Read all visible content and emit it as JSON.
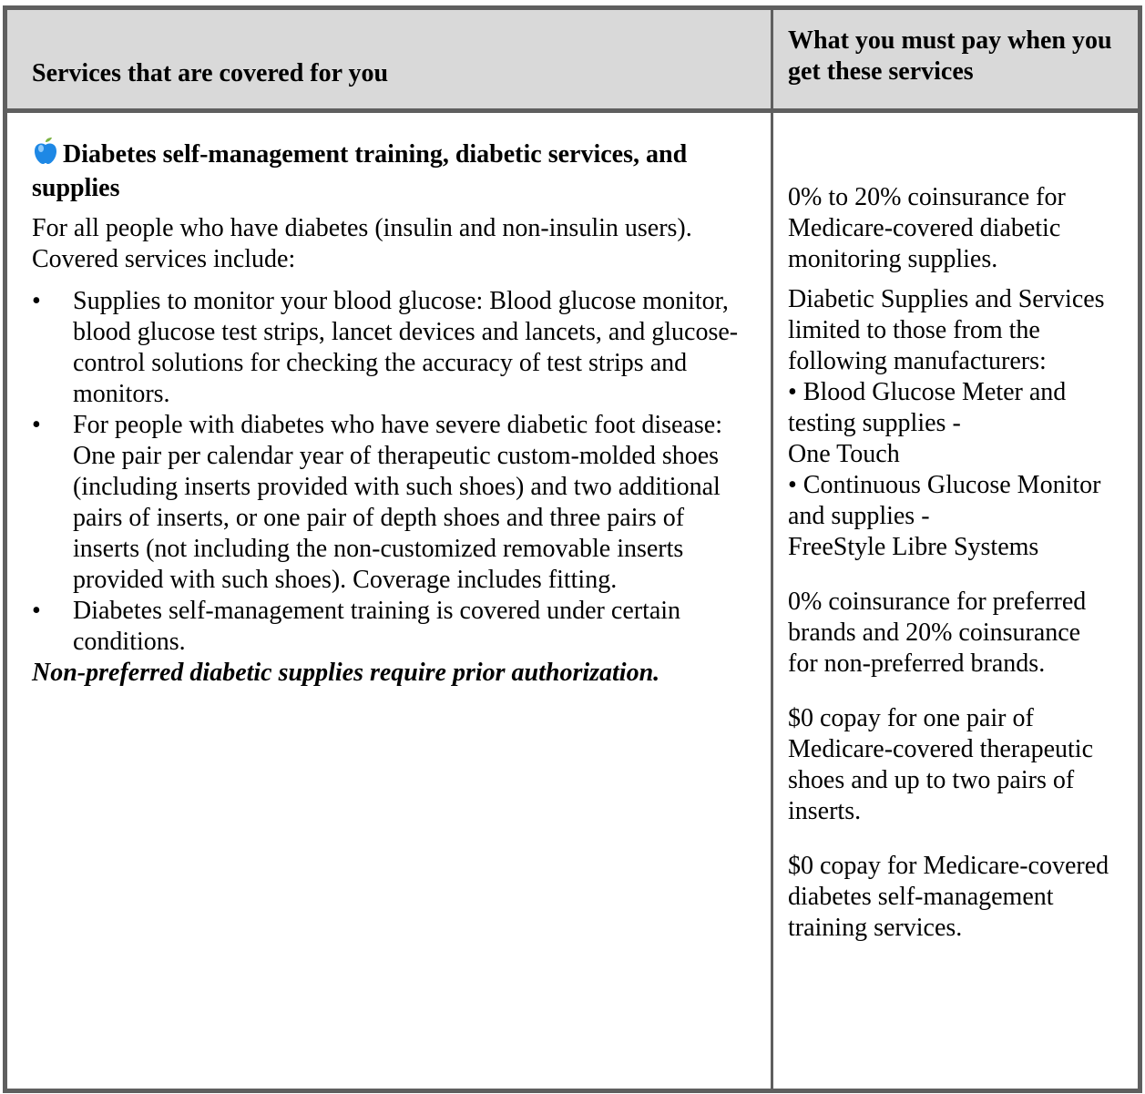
{
  "table": {
    "header": {
      "left": "Services that are covered for you",
      "right": "What you must pay when you get these services"
    },
    "service": {
      "icon": "apple-icon",
      "title": "Diabetes self-management training, diabetic services, and supplies",
      "intro": "For all people who have diabetes (insulin and non-insulin users). Covered services include:",
      "bullets": [
        "Supplies to monitor your blood glucose: Blood glucose monitor, blood glucose test strips, lancet devices and lancets, and glucose-control solutions for checking the accuracy of test strips and monitors.",
        "For people with diabetes who have severe diabetic foot disease: One pair per calendar year of therapeutic custom-molded shoes (including inserts provided with such shoes) and two additional pairs of inserts, or one pair of depth shoes and three pairs of inserts (not including the non-customized removable inserts provided with such shoes). Coverage includes fitting.",
        "Diabetes self-management training is covered under certain conditions."
      ],
      "note": "Non-preferred diabetic supplies require prior authorization."
    },
    "cost": {
      "p1": "0% to 20% coinsurance for Medicare-covered diabetic monitoring supplies.",
      "p2": "Diabetic Supplies and Services limited to those from the following manufacturers:\n• Blood Glucose Meter and testing supplies -\nOne Touch\n• Continuous Glucose Monitor and supplies -\nFreeStyle Libre Systems",
      "p3": "0% coinsurance for preferred brands and 20% coinsurance for non-preferred brands.",
      "p4": "$0 copay for one pair of Medicare-covered therapeutic shoes and up to two pairs of inserts.",
      "p5": "$0 copay for Medicare-covered diabetes self-management training services."
    },
    "colors": {
      "border": "#5f5f5f",
      "header_bg": "#d9d9d9",
      "apple": "#1e88e5",
      "leaf": "#7cb342"
    }
  }
}
